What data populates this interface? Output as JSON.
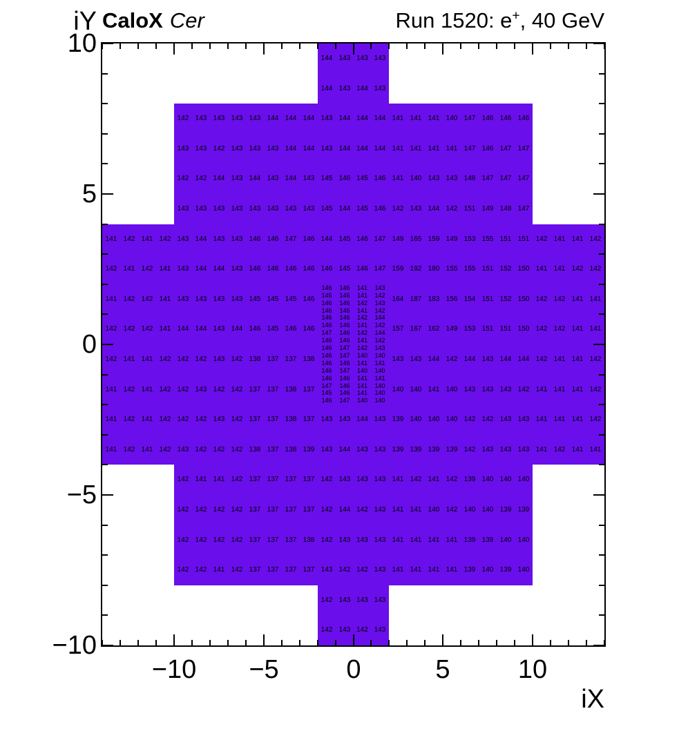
{
  "header": {
    "left_bold": "CaloX",
    "left_italic": "Cer",
    "right_prefix": "Run 1520: e",
    "right_sup": "+",
    "right_suffix": ", 40 GeV"
  },
  "axes": {
    "x_label": "iX",
    "y_label": "iY",
    "x_ticks": [
      "−10",
      "−5",
      "0",
      "5",
      "10"
    ],
    "x_tick_values": [
      -10,
      -5,
      0,
      5,
      10
    ],
    "y_ticks": [
      "10",
      "5",
      "0",
      "−5",
      "−10"
    ],
    "y_tick_values": [
      10,
      5,
      0,
      -5,
      -10
    ],
    "x_range": [
      -14,
      14
    ],
    "y_range": [
      -10,
      10
    ],
    "minor_tick_step": 1
  },
  "colors": {
    "cell_fill": "#6A0EEB",
    "text": "#000000",
    "axis": "#000000"
  },
  "chart_data": {
    "type": "heatmap",
    "title_left": "CaloX Cer",
    "title_right": "Run 1520: e+, 40 GeV",
    "xlabel": "iX",
    "ylabel": "iY",
    "xlim": [
      -14,
      14
    ],
    "ylim": [
      -10,
      10
    ],
    "blocks": [
      {
        "name": "top-narrow",
        "x_start": -2,
        "y_top": 10,
        "cell_w": 1,
        "cell_h": 1,
        "font_px": 10,
        "rows": [
          [
            144,
            143,
            143,
            143
          ],
          [
            144,
            143,
            144,
            143
          ]
        ]
      },
      {
        "name": "upper-mid",
        "x_start": -10,
        "y_top": 8,
        "cell_w": 1,
        "cell_h": 1,
        "font_px": 10,
        "rows": [
          [
            142,
            143,
            143,
            143,
            143,
            144,
            144,
            144,
            143,
            144,
            144,
            144,
            141,
            141,
            141,
            140,
            147,
            146,
            146,
            146
          ],
          [
            143,
            143,
            142,
            143,
            143,
            143,
            144,
            144,
            143,
            144,
            144,
            144,
            141,
            141,
            141,
            141,
            147,
            146,
            147,
            147
          ],
          [
            142,
            142,
            144,
            143,
            144,
            143,
            144,
            143,
            145,
            146,
            145,
            146,
            141,
            140,
            143,
            143,
            148,
            147,
            147,
            147
          ],
          [
            143,
            143,
            143,
            143,
            143,
            143,
            143,
            143,
            145,
            144,
            145,
            146,
            142,
            143,
            144,
            142,
            151,
            149,
            148,
            147
          ]
        ]
      },
      {
        "name": "wide-upper",
        "x_start": -14,
        "y_top": 4,
        "cell_w": 1,
        "cell_h": 1,
        "font_px": 10,
        "rows": [
          [
            141,
            142,
            141,
            142,
            143,
            144,
            143,
            143,
            146,
            146,
            147,
            146,
            144,
            145,
            146,
            147,
            149,
            165,
            159,
            149,
            153,
            155,
            151,
            151,
            142,
            141,
            141,
            142
          ],
          [
            142,
            141,
            142,
            141,
            143,
            144,
            144,
            143,
            146,
            146,
            146,
            146,
            146,
            145,
            146,
            147,
            159,
            192,
            180,
            155,
            155,
            151,
            152,
            150,
            141,
            141,
            142,
            142
          ]
        ]
      },
      {
        "name": "wide-left",
        "x_start": -14,
        "y_top": 2,
        "cell_w": 1,
        "cell_h": 1,
        "font_px": 10,
        "rows": [
          [
            141,
            142,
            142,
            141,
            143,
            143,
            143,
            143,
            145,
            145,
            145,
            146
          ],
          [
            142,
            142,
            142,
            141,
            144,
            144,
            143,
            144,
            146,
            145,
            146,
            146
          ],
          [
            142,
            141,
            141,
            142,
            142,
            142,
            143,
            142,
            138,
            137,
            137,
            138
          ],
          [
            141,
            142,
            141,
            142,
            142,
            143,
            142,
            142,
            137,
            137,
            138,
            137
          ]
        ]
      },
      {
        "name": "center-fine",
        "x_start": -2,
        "y_top": 2,
        "cell_w": 1,
        "cell_h": 0.25,
        "font_px": 9,
        "rows": [
          [
            146,
            146,
            141,
            143
          ],
          [
            145,
            146,
            141,
            142
          ],
          [
            146,
            146,
            142,
            143
          ],
          [
            146,
            146,
            141,
            142
          ],
          [
            146,
            146,
            142,
            144
          ],
          [
            146,
            146,
            141,
            142
          ],
          [
            147,
            146,
            142,
            144
          ],
          [
            146,
            146,
            141,
            142
          ],
          [
            146,
            147,
            142,
            143
          ],
          [
            146,
            147,
            140,
            140
          ],
          [
            146,
            146,
            141,
            141
          ],
          [
            146,
            147,
            140,
            140
          ],
          [
            146,
            146,
            141,
            141
          ],
          [
            147,
            146,
            141,
            140
          ],
          [
            145,
            146,
            141,
            140
          ],
          [
            146,
            147,
            140,
            140
          ]
        ]
      },
      {
        "name": "wide-right",
        "x_start": 2,
        "y_top": 2,
        "cell_w": 1,
        "cell_h": 1,
        "font_px": 10,
        "rows": [
          [
            164,
            187,
            183,
            156,
            154,
            151,
            152,
            150,
            142,
            142,
            141,
            141
          ],
          [
            157,
            167,
            162,
            149,
            153,
            151,
            151,
            150,
            142,
            142,
            141,
            141
          ],
          [
            143,
            143,
            144,
            142,
            144,
            143,
            144,
            144,
            142,
            141,
            141,
            142
          ],
          [
            140,
            140,
            141,
            140,
            143,
            143,
            143,
            142,
            141,
            141,
            141,
            142
          ]
        ]
      },
      {
        "name": "wide-lower",
        "x_start": -14,
        "y_top": -2,
        "cell_w": 1,
        "cell_h": 1,
        "font_px": 10,
        "rows": [
          [
            141,
            142,
            141,
            142,
            142,
            142,
            143,
            142,
            137,
            137,
            138,
            137,
            143,
            143,
            144,
            143,
            139,
            140,
            140,
            140,
            142,
            142,
            143,
            143,
            141,
            141,
            141,
            142
          ],
          [
            141,
            142,
            141,
            142,
            143,
            142,
            142,
            142,
            138,
            137,
            138,
            139,
            143,
            144,
            143,
            143,
            139,
            139,
            139,
            139,
            142,
            143,
            143,
            143,
            141,
            142,
            141,
            141
          ]
        ]
      },
      {
        "name": "lower-mid",
        "x_start": -10,
        "y_top": -4,
        "cell_w": 1,
        "cell_h": 1,
        "font_px": 10,
        "rows": [
          [
            142,
            141,
            141,
            142,
            137,
            137,
            137,
            137,
            142,
            143,
            143,
            143,
            141,
            142,
            141,
            142,
            139,
            140,
            140,
            140
          ],
          [
            142,
            142,
            142,
            142,
            137,
            137,
            137,
            137,
            142,
            144,
            142,
            143,
            141,
            141,
            140,
            142,
            140,
            140,
            139,
            139
          ],
          [
            142,
            142,
            142,
            142,
            137,
            137,
            137,
            138,
            142,
            143,
            143,
            143,
            141,
            141,
            141,
            141,
            139,
            139,
            140,
            140
          ],
          [
            142,
            142,
            141,
            142,
            137,
            137,
            137,
            137,
            143,
            142,
            142,
            143,
            141,
            141,
            141,
            141,
            139,
            140,
            139,
            140
          ]
        ]
      },
      {
        "name": "bottom-narrow",
        "x_start": -2,
        "y_top": -8,
        "cell_w": 1,
        "cell_h": 1,
        "font_px": 10,
        "rows": [
          [
            142,
            143,
            143,
            143
          ],
          [
            142,
            143,
            142,
            143
          ]
        ]
      }
    ]
  }
}
